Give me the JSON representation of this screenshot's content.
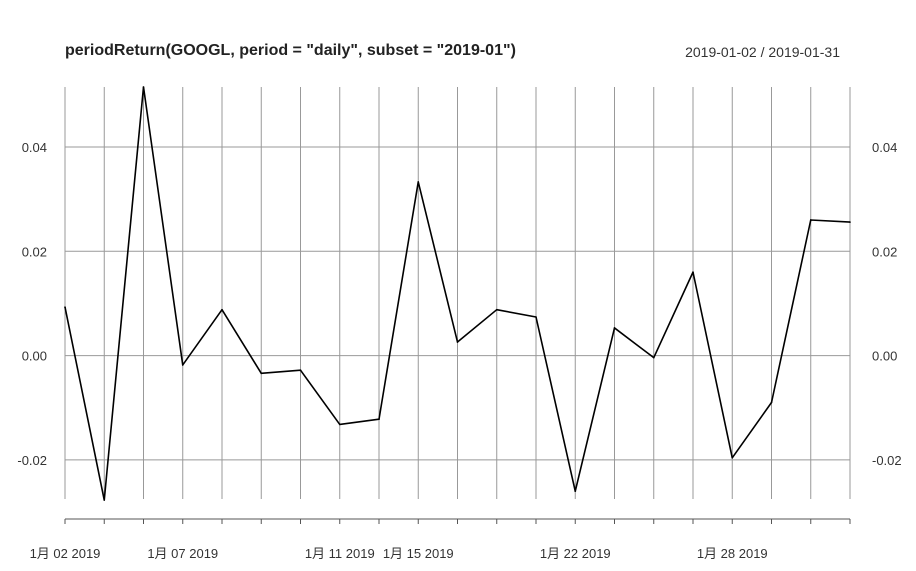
{
  "chart_data": {
    "type": "line",
    "title": "periodReturn(GOOGL, period = \"daily\", subset = \"2019-01\")",
    "date_range": "2019-01-02 / 2019-01-31",
    "x": [
      "2019-01-02",
      "2019-01-03",
      "2019-01-04",
      "2019-01-07",
      "2019-01-08",
      "2019-01-09",
      "2019-01-10",
      "2019-01-11",
      "2019-01-14",
      "2019-01-15",
      "2019-01-16",
      "2019-01-17",
      "2019-01-18",
      "2019-01-22",
      "2019-01-23",
      "2019-01-24",
      "2019-01-25",
      "2019-01-28",
      "2019-01-29",
      "2019-01-30",
      "2019-01-31"
    ],
    "series": [
      {
        "values": [
          0.0093,
          -0.0277,
          0.0515,
          -0.0018,
          0.0088,
          -0.0034,
          -0.0028,
          -0.0132,
          -0.0122,
          0.0333,
          0.0026,
          0.0088,
          0.0074,
          -0.026,
          0.0053,
          -0.0004,
          0.016,
          -0.0196,
          -0.009,
          0.026,
          0.0256
        ]
      }
    ],
    "ylim": [
      -0.0275,
      0.0515
    ],
    "yticks": [
      -0.02,
      0.0,
      0.02,
      0.04
    ],
    "ytick_labels": [
      "-0.02",
      "0.00",
      "0.02",
      "0.04"
    ],
    "xtick_labels": [
      {
        "date": "2019-01-02",
        "label": "1月 02 2019"
      },
      {
        "date": "2019-01-07",
        "label": "1月 07 2019"
      },
      {
        "date": "2019-01-11",
        "label": "1月 11 2019"
      },
      {
        "date": "2019-01-15",
        "label": "1月 15 2019"
      },
      {
        "date": "2019-01-22",
        "label": "1月 22 2019"
      },
      {
        "date": "2019-01-28",
        "label": "1月 28 2019"
      }
    ],
    "grid": true,
    "colors": {
      "line": "#000000",
      "grid": "#999999",
      "axis": "#555555"
    }
  }
}
